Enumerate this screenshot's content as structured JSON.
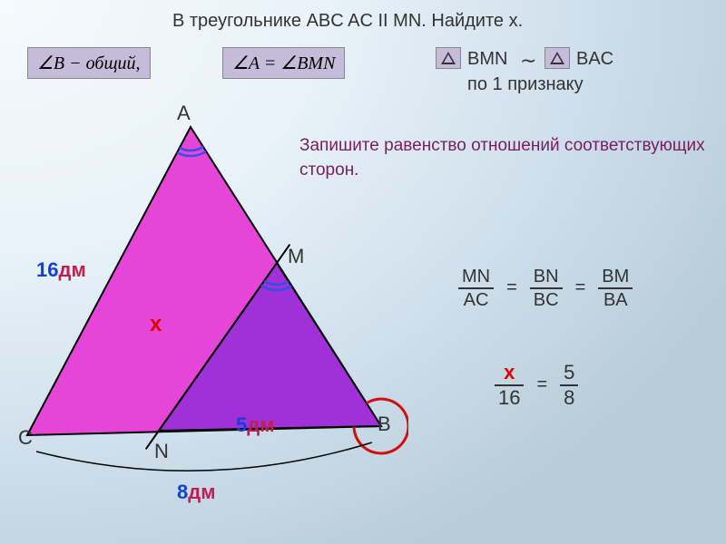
{
  "problem": "В треугольнике ABC     AC II MN.      Найдите х.",
  "formula1": "∠B − общий,",
  "formula2": "∠A = ∠BMN",
  "similar": {
    "t1": "BMN",
    "sym": "∼",
    "t2": "BAC",
    "by": "по 1 признаку"
  },
  "instruction": "Запишите равенство отношений соответствующих сторон.",
  "points": {
    "A": "A",
    "B": "B",
    "C": "C",
    "M": "M",
    "N": "N"
  },
  "measures": {
    "AC": {
      "val": "16",
      "unit": "дм"
    },
    "NB": {
      "val": "5",
      "unit": "дм"
    },
    "CB": {
      "val": "8",
      "unit": "дм"
    },
    "x": "x"
  },
  "colors": {
    "val": "#1040d8",
    "unit": "#c02050",
    "x": "#e00000",
    "outer_fill": "#e646d8",
    "inner_fill": "#a030d8",
    "stroke": "#000000",
    "arc_angle": "#3050e8",
    "red_angle": "#d01010"
  },
  "ratios": {
    "r1": {
      "num": "MN",
      "den": "AC"
    },
    "r2": {
      "num": "BN",
      "den": "BC"
    },
    "r3": {
      "num": "BM",
      "den": "BA"
    }
  },
  "solve": {
    "r1": {
      "num": "x",
      "den": "16",
      "num_color": "#e00000"
    },
    "r2": {
      "num": "5",
      "den": "8"
    }
  },
  "geometry": {
    "A": [
      200,
      30
    ],
    "B": [
      410,
      360
    ],
    "C": [
      20,
      370
    ],
    "M": [
      295,
      180
    ],
    "N": [
      165,
      365
    ]
  }
}
